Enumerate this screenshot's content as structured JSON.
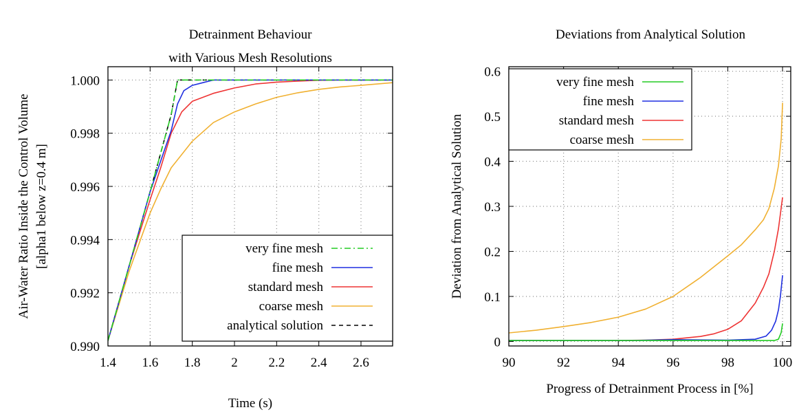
{
  "chart_data": [
    {
      "type": "line",
      "title": [
        "Detrainment Behaviour",
        "with Various Mesh Resolutions"
      ],
      "xlabel": "Time (s)",
      "ylabel": [
        "Air-Water Ratio Inside the Control Volume",
        "[alpha1 below z=0.4 m]"
      ],
      "xlim": [
        1.4,
        2.75
      ],
      "ylim": [
        0.99,
        1.0005
      ],
      "xticks": [
        1.4,
        1.6,
        1.8,
        2,
        2.2,
        2.4,
        2.6
      ],
      "xtick_labels": [
        "1.4",
        "1.6",
        "1.8",
        "2",
        "2.2",
        "2.4",
        "2.6"
      ],
      "yticks": [
        0.99,
        0.992,
        0.994,
        0.996,
        0.998,
        1.0
      ],
      "ytick_labels": [
        "0.990",
        "0.992",
        "0.994",
        "0.996",
        "0.998",
        "1.000"
      ],
      "grid": true,
      "legend": "lower-right",
      "series": [
        {
          "name": "very fine mesh",
          "color": "#22cc22",
          "dash": "dashdot",
          "x": [
            1.4,
            1.5,
            1.6,
            1.7,
            1.73,
            1.75,
            2.75
          ],
          "y": [
            0.9902,
            0.993,
            0.9958,
            0.9987,
            1.0,
            1.0,
            1.0
          ]
        },
        {
          "name": "fine mesh",
          "color": "#1f2fe0",
          "dash": "solid",
          "x": [
            1.4,
            1.5,
            1.6,
            1.7,
            1.73,
            1.76,
            1.8,
            1.85,
            1.9,
            2.75
          ],
          "y": [
            0.9902,
            0.993,
            0.9958,
            0.9981,
            0.9991,
            0.9996,
            0.9998,
            0.9999,
            1.0,
            1.0
          ]
        },
        {
          "name": "standard mesh",
          "color": "#ee3333",
          "dash": "solid",
          "x": [
            1.4,
            1.5,
            1.6,
            1.65,
            1.7,
            1.75,
            1.8,
            1.9,
            2.0,
            2.1,
            2.2,
            2.3,
            2.4,
            2.5,
            2.75
          ],
          "y": [
            0.9902,
            0.993,
            0.9955,
            0.9967,
            0.998,
            0.9988,
            0.9992,
            0.9995,
            0.9997,
            0.99985,
            0.99992,
            0.99996,
            0.99999,
            1.0,
            1.0
          ]
        },
        {
          "name": "coarse mesh",
          "color": "#f0b030",
          "dash": "solid",
          "x": [
            1.4,
            1.5,
            1.6,
            1.65,
            1.7,
            1.8,
            1.9,
            2.0,
            2.1,
            2.2,
            2.3,
            2.4,
            2.5,
            2.6,
            2.75
          ],
          "y": [
            0.9902,
            0.9928,
            0.995,
            0.9959,
            0.9967,
            0.9977,
            0.9984,
            0.9988,
            0.9991,
            0.99935,
            0.99952,
            0.99965,
            0.99974,
            0.9998,
            0.9999
          ]
        },
        {
          "name": "analytical solution",
          "color": "#000000",
          "dash": "dashed",
          "x": [
            1.4,
            1.5,
            1.6,
            1.7,
            1.73,
            2.75
          ],
          "y": [
            0.9902,
            0.993,
            0.9958,
            0.9987,
            1.0,
            1.0
          ]
        }
      ]
    },
    {
      "type": "line",
      "title": [
        "Deviations from Analytical Solution"
      ],
      "xlabel": "Progress of Detrainment Process in [%]",
      "ylabel": [
        "Deviation from Analytical Solution"
      ],
      "xlim": [
        90,
        100.3
      ],
      "ylim": [
        -0.01,
        0.61
      ],
      "xticks": [
        90,
        92,
        94,
        96,
        98,
        100
      ],
      "xtick_labels": [
        "90",
        "92",
        "94",
        "96",
        "98",
        "100"
      ],
      "yticks": [
        0,
        0.1,
        0.2,
        0.3,
        0.4,
        0.5,
        0.6
      ],
      "ytick_labels": [
        "0",
        "0.1",
        "0.2",
        "0.3",
        "0.4",
        "0.5",
        "0.6"
      ],
      "grid": true,
      "legend": "top-left",
      "series": [
        {
          "name": "very fine mesh",
          "color": "#22cc22",
          "dash": "solid",
          "x": [
            90,
            99.7,
            99.85,
            99.95,
            100
          ],
          "y": [
            0.002,
            0.002,
            0.005,
            0.02,
            0.04
          ]
        },
        {
          "name": "fine mesh",
          "color": "#1f2fe0",
          "dash": "solid",
          "x": [
            90,
            94.5,
            96,
            98,
            99,
            99.4,
            99.6,
            99.75,
            99.85,
            99.92,
            100
          ],
          "y": [
            0.002,
            0.002,
            0.004,
            0.003,
            0.005,
            0.012,
            0.025,
            0.045,
            0.07,
            0.1,
            0.147
          ]
        },
        {
          "name": "standard mesh",
          "color": "#ee3333",
          "dash": "solid",
          "x": [
            90,
            94,
            95,
            96,
            97,
            97.5,
            98,
            98.5,
            99,
            99.3,
            99.5,
            99.7,
            99.85,
            100
          ],
          "y": [
            0.002,
            0.002,
            0.003,
            0.005,
            0.011,
            0.017,
            0.027,
            0.046,
            0.085,
            0.12,
            0.15,
            0.2,
            0.25,
            0.32
          ]
        },
        {
          "name": "coarse mesh",
          "color": "#f0b030",
          "dash": "solid",
          "x": [
            90,
            91,
            92,
            93,
            94,
            95,
            96,
            97,
            98,
            98.5,
            99,
            99.3,
            99.5,
            99.7,
            99.85,
            99.95,
            100
          ],
          "y": [
            0.019,
            0.025,
            0.033,
            0.042,
            0.054,
            0.072,
            0.1,
            0.142,
            0.19,
            0.215,
            0.248,
            0.27,
            0.295,
            0.34,
            0.39,
            0.45,
            0.53
          ]
        }
      ]
    }
  ]
}
